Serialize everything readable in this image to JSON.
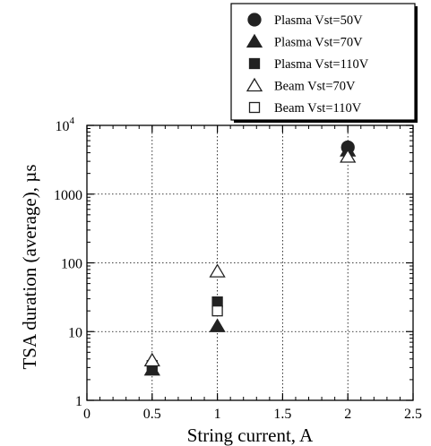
{
  "chart_data": {
    "type": "scatter",
    "xlabel": "String current, A",
    "ylabel": "TSA duration (average), µs",
    "xlim": [
      0,
      2.5
    ],
    "ylim": [
      1,
      10000
    ],
    "y_scale": "log",
    "grid": true,
    "grid_style": "dotted",
    "legend_placement": "top-right, above plot",
    "x_ticks": [
      "0",
      "0.5",
      "1",
      "1.5",
      "2",
      "2.5"
    ],
    "y_ticks": [
      {
        "value": 1,
        "label": "1"
      },
      {
        "value": 10,
        "label": "10"
      },
      {
        "value": 100,
        "label": "100"
      },
      {
        "value": 1000,
        "label": "1000"
      },
      {
        "value": 10000,
        "label": "10",
        "exponent": "4"
      }
    ],
    "series": [
      {
        "name": "Plasma Vst=50V",
        "marker": "circle",
        "filled": true,
        "points": [
          {
            "x": 2,
            "y": 4800
          }
        ]
      },
      {
        "name": "Plasma Vst=70V",
        "marker": "triangle",
        "filled": true,
        "points": [
          {
            "x": 0.5,
            "y": 2.8
          },
          {
            "x": 1,
            "y": 12
          },
          {
            "x": 2,
            "y": 4300
          }
        ]
      },
      {
        "name": "Plasma Vst=110V",
        "marker": "square",
        "filled": true,
        "points": [
          {
            "x": 0.5,
            "y": 3.2
          },
          {
            "x": 1,
            "y": 27
          }
        ]
      },
      {
        "name": "Beam Vst=70V",
        "marker": "triangle",
        "filled": false,
        "points": [
          {
            "x": 0.5,
            "y": 3.8
          },
          {
            "x": 1,
            "y": 75
          },
          {
            "x": 2,
            "y": 3500
          }
        ]
      },
      {
        "name": "Beam Vst=110V",
        "marker": "square",
        "filled": false,
        "points": [
          {
            "x": 1,
            "y": 20
          }
        ]
      }
    ]
  },
  "colors": {
    "marker": "#222222",
    "axis": "#000000",
    "grid": "#000000"
  }
}
